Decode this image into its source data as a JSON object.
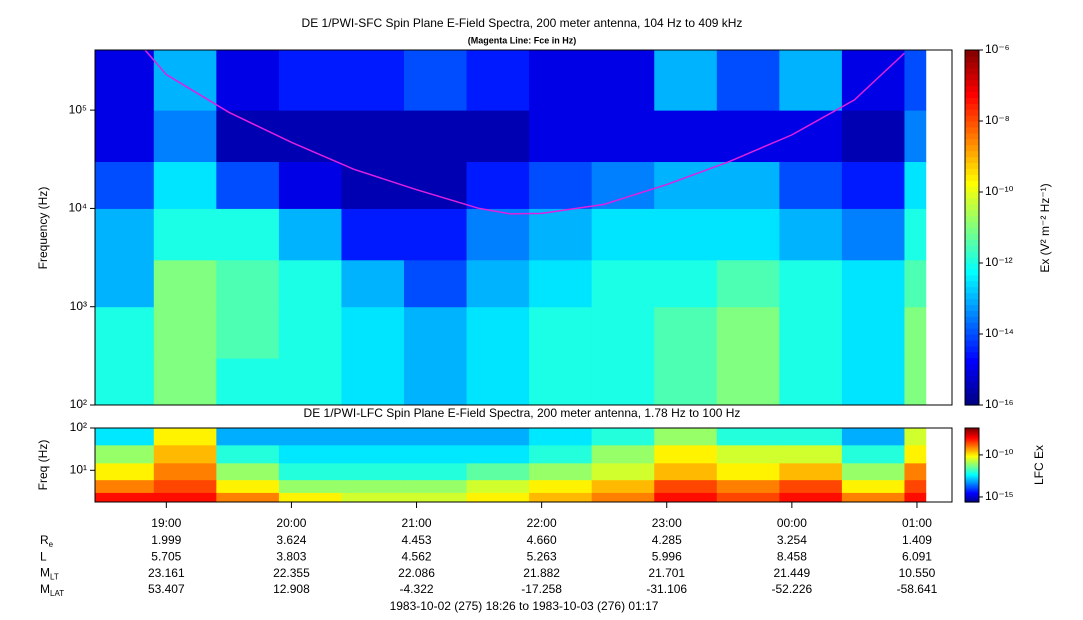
{
  "chart_data": [
    {
      "type": "heatmap",
      "title": "DE 1/PWI-SFC  Spin Plane E-Field Spectra, 200 meter antenna, 104 Hz to 409 kHz",
      "subtitle": "(Magenta Line: Fce in Hz)",
      "ylabel": "Frequency (Hz)",
      "y_log": true,
      "xlim": [
        18.43,
        25.28
      ],
      "ylim": [
        100,
        409000
      ],
      "yticks": [
        {
          "value": 100,
          "label": "10²"
        },
        {
          "value": 1000,
          "label": "10³"
        },
        {
          "value": 10000,
          "label": "10⁴"
        },
        {
          "value": 100000,
          "label": "10⁵"
        }
      ],
      "x_edges": [
        18.43,
        18.9,
        19.4,
        19.9,
        20.4,
        20.9,
        21.4,
        21.9,
        22.4,
        22.9,
        23.4,
        23.9,
        24.4,
        24.9,
        25.07
      ],
      "y_edges": [
        100,
        300,
        1000,
        3000,
        10000,
        30000,
        100000,
        409000
      ],
      "z": [
        [
          -12,
          -11,
          -12,
          -12,
          -12.5,
          -13,
          -12.5,
          -12,
          -12,
          -11.5,
          -11,
          -12,
          -12.5,
          -11
        ],
        [
          -12,
          -11,
          -11.5,
          -12,
          -12.5,
          -13,
          -12.5,
          -12,
          -12,
          -11.5,
          -11,
          -12,
          -12.5,
          -11
        ],
        [
          -13,
          -11,
          -11.5,
          -12,
          -13,
          -14,
          -13,
          -12.5,
          -12,
          -12,
          -11.5,
          -12,
          -12.5,
          -11.5
        ],
        [
          -13,
          -12,
          -12,
          -13,
          -14.5,
          -14.5,
          -13.5,
          -13,
          -12.5,
          -12.5,
          -12.5,
          -13,
          -13.5,
          -12
        ],
        [
          -14,
          -12.5,
          -14,
          -15,
          -15.5,
          -15.5,
          -14.5,
          -14,
          -13.5,
          -13,
          -13,
          -14,
          -14.5,
          -12.5
        ],
        [
          -15,
          -13.5,
          -15.5,
          -15.5,
          -15.5,
          -15.5,
          -15.5,
          -15,
          -15,
          -15,
          -15,
          -15,
          -15.5,
          -13.5
        ],
        [
          -15,
          -13,
          -15,
          -14.5,
          -14.5,
          -14,
          -14.5,
          -15,
          -15,
          -13,
          -14,
          -13,
          -15,
          -14
        ]
      ],
      "colormap": "jet",
      "zlim": [
        -16,
        -6
      ],
      "zticks": [
        {
          "value": -6,
          "label": "10⁻⁶"
        },
        {
          "value": -8,
          "label": "10⁻⁸"
        },
        {
          "value": -10,
          "label": "10⁻¹⁰"
        },
        {
          "value": -12,
          "label": "10⁻¹²"
        },
        {
          "value": -14,
          "label": "10⁻¹⁴"
        },
        {
          "value": -16,
          "label": "10⁻¹⁶"
        }
      ],
      "zlabel": "Ex (V² m⁻² Hz⁻¹)",
      "series": [
        {
          "color": "#e020e0",
          "x": [
            18.83,
            19,
            19.5,
            20,
            20.5,
            21,
            21.5,
            21.75,
            22,
            22.5,
            23,
            23.5,
            24,
            24.5,
            24.9
          ],
          "values": [
            409000,
            230000,
            95000,
            47000,
            25000,
            15500,
            10000,
            8800,
            8900,
            11000,
            17500,
            30000,
            56000,
            127000,
            380000
          ]
        }
      ]
    },
    {
      "type": "heatmap",
      "title": "DE 1/PWI-LFC  Spin Plane E-Field Spectra, 200 meter antenna, 1.78 Hz to 100 Hz",
      "ylabel": "Freq (Hz)",
      "y_log": true,
      "xlim": [
        18.43,
        25.28
      ],
      "xticks": [
        {
          "value": 19,
          "label": "19:00"
        },
        {
          "value": 20,
          "label": "20:00"
        },
        {
          "value": 21,
          "label": "21:00"
        },
        {
          "value": 22,
          "label": "22:00"
        },
        {
          "value": 23,
          "label": "23:00"
        },
        {
          "value": 24,
          "label": "00:00"
        },
        {
          "value": 25,
          "label": "01:00"
        }
      ],
      "ylim": [
        1.78,
        100
      ],
      "yticks": [
        {
          "value": 10,
          "label": "10¹"
        },
        {
          "value": 100,
          "label": "10²"
        }
      ],
      "x_edges": [
        18.43,
        18.9,
        19.4,
        19.9,
        20.4,
        20.9,
        21.4,
        21.9,
        22.4,
        22.9,
        23.4,
        23.9,
        24.4,
        24.9,
        25.07
      ],
      "y_edges": [
        1.78,
        3,
        6,
        15,
        40,
        100
      ],
      "z": [
        [
          -8,
          -8,
          -9,
          -10,
          -10.5,
          -10.5,
          -10,
          -9.5,
          -9,
          -8,
          -8.5,
          -8,
          -9,
          -8
        ],
        [
          -9,
          -8.5,
          -10,
          -11,
          -11,
          -11,
          -10.5,
          -10,
          -9.5,
          -8.5,
          -9,
          -8.5,
          -10,
          -8.5
        ],
        [
          -10,
          -9,
          -11,
          -12,
          -12,
          -12,
          -11.5,
          -11,
          -10.5,
          -9.5,
          -10,
          -9.5,
          -11,
          -9
        ],
        [
          -11,
          -9.5,
          -12,
          -12.5,
          -12.5,
          -12.5,
          -12.5,
          -12,
          -11,
          -10,
          -10.5,
          -10.5,
          -12,
          -10
        ],
        [
          -12.5,
          -10,
          -13,
          -13,
          -13,
          -13,
          -13,
          -12.5,
          -12,
          -11,
          -12,
          -12,
          -13,
          -10.5
        ]
      ],
      "colormap": "jet",
      "zlim": [
        -15.6,
        -6.8
      ],
      "zticks": [
        {
          "value": -10,
          "label": "10⁻¹⁰"
        },
        {
          "value": -15,
          "label": "10⁻¹⁵"
        }
      ],
      "zlabel": "LFC Ex"
    }
  ],
  "ephemeris": {
    "rows": [
      {
        "label": "R",
        "label_sub": "e",
        "values": [
          "1.999",
          "3.624",
          "4.453",
          "4.660",
          "4.285",
          "3.254",
          "1.409"
        ]
      },
      {
        "label": "L",
        "values": [
          "5.705",
          "3.803",
          "4.562",
          "5.263",
          "5.996",
          "8.458",
          "6.091"
        ]
      },
      {
        "label": "M",
        "label_sub": "LT",
        "values": [
          "23.161",
          "22.355",
          "22.086",
          "21.882",
          "21.701",
          "21.449",
          "10.550"
        ]
      },
      {
        "label": "M",
        "label_sub": "LAT",
        "values": [
          "53.407",
          "12.908",
          "-4.322",
          "-17.258",
          "-31.106",
          "-52.226",
          "-58.641"
        ]
      }
    ]
  },
  "footer": "1983-10-02 (275) 18:26 to 1983-10-03 (276) 01:17"
}
